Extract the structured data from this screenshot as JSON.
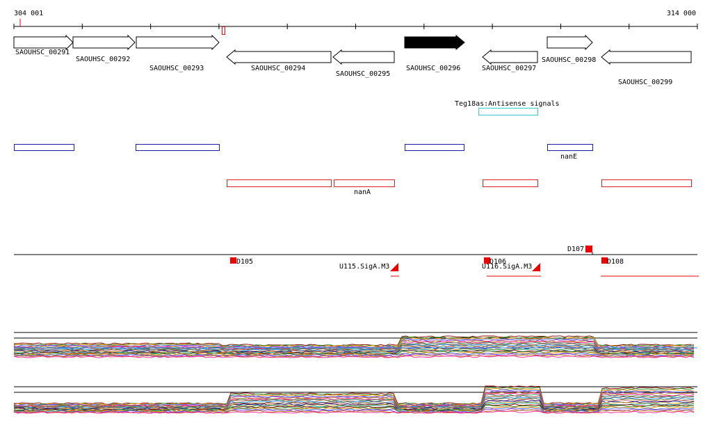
{
  "ruler": {
    "start_label": "304 001",
    "end_label": "314 000"
  },
  "genes": [
    {
      "id": "SAOUHSC_00291",
      "strand": "+",
      "filled": false
    },
    {
      "id": "SAOUHSC_00292",
      "strand": "+",
      "filled": false
    },
    {
      "id": "SAOUHSC_00293",
      "strand": "+",
      "filled": false
    },
    {
      "id": "SAOUHSC_00294",
      "strand": "-",
      "filled": false
    },
    {
      "id": "SAOUHSC_00295",
      "strand": "-",
      "filled": false
    },
    {
      "id": "SAOUHSC_00296",
      "strand": "+",
      "filled": true
    },
    {
      "id": "SAOUHSC_00297",
      "strand": "-",
      "filled": false
    },
    {
      "id": "SAOUHSC_00298",
      "strand": "+",
      "filled": false
    },
    {
      "id": "SAOUHSC_00299",
      "strand": "-",
      "filled": false
    }
  ],
  "antisense": {
    "label": "Teg18as:Antisense signals",
    "color": "#33cccc"
  },
  "operons_plus": {
    "color": "#1a1aa6",
    "labels": [
      "nanE"
    ]
  },
  "operons_minus": {
    "color": "#dd2222",
    "labels": [
      "nanA"
    ]
  },
  "promoters": [
    {
      "label": "D105"
    },
    {
      "label": "D106"
    },
    {
      "label": "D107"
    },
    {
      "label": "D108"
    },
    {
      "label": "U115.SigA.M3"
    },
    {
      "label": "U116.SigA.M3"
    }
  ],
  "colors": {
    "feature_red": "#ee0000",
    "axis": "#000000"
  }
}
